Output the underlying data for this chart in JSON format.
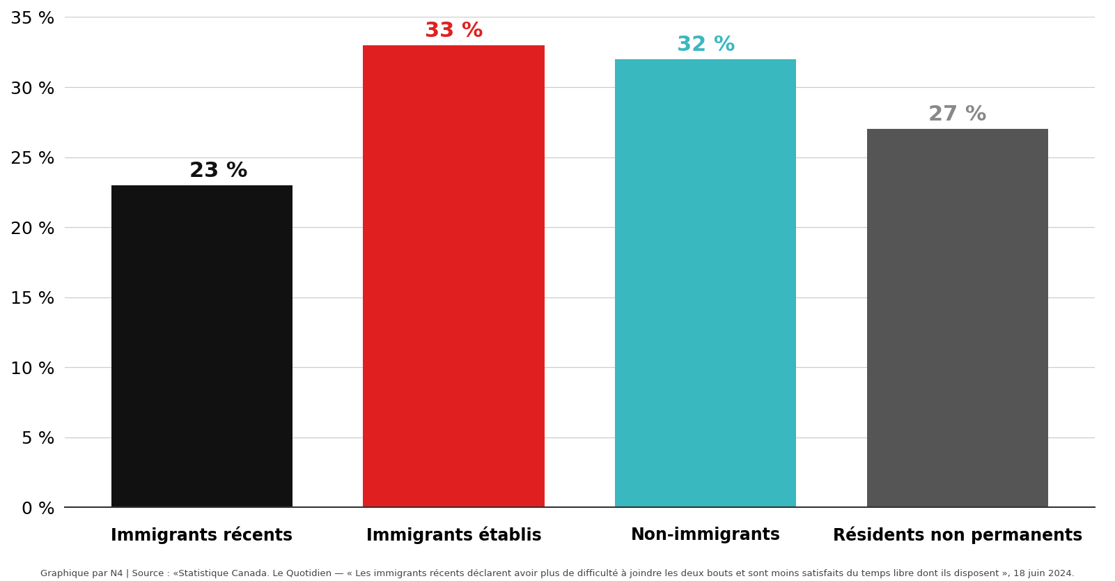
{
  "categories": [
    "Immigrants récents",
    "Immigrants établis",
    "Non-immigrants",
    "Résidents non permanents"
  ],
  "values": [
    23,
    33,
    32,
    27
  ],
  "bar_colors": [
    "#111111",
    "#e02020",
    "#3ab8bf",
    "#555555"
  ],
  "label_colors": [
    "#111111",
    "#e02020",
    "#3ab8bf",
    "#888888"
  ],
  "labels": [
    "23 %",
    "33 %",
    "32 %",
    "27 %"
  ],
  "ylim": [
    0,
    35
  ],
  "yticks": [
    0,
    5,
    10,
    15,
    20,
    25,
    30,
    35
  ],
  "background_color": "#ffffff",
  "grid_color": "#cccccc",
  "label_fontsize": 22,
  "tick_fontsize": 18,
  "category_fontsize": 17,
  "bar_width": 0.72,
  "footnote": "Graphique par N4 | Source : «Statistique Canada. Le Quotidien — « Les immigrants récents déclarent avoir plus de difficulté à joindre les deux bouts et sont moins satisfaits du temps libre dont ils disposent », 18 juin 2024.",
  "footnote_fontsize": 9.5
}
